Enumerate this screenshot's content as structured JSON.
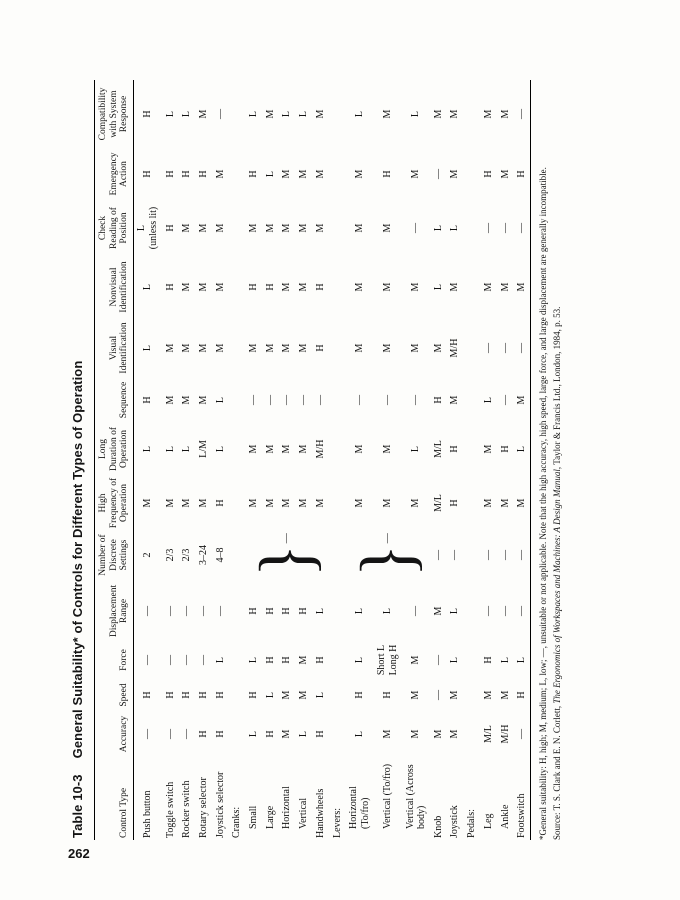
{
  "page": {
    "number": "262"
  },
  "table": {
    "title_label": "Table 10-3",
    "title": "General Suitability* of Controls for Different Types of Operation",
    "columns": [
      "Control Type",
      "Accuracy",
      "Speed",
      "Force",
      "Displacement Range",
      "Number of Discrete Settings",
      "High Frequency of Operation",
      "Long Duration of Operation",
      "Sequence",
      "Visual Identification",
      "Nonvisual Identification",
      "Check Reading of Position",
      "Emergency Action",
      "Compatibility with System Response"
    ],
    "rows": [
      {
        "label": "Push button",
        "values": [
          "—",
          "H",
          "—",
          "—",
          "2",
          "M",
          "L",
          "H",
          "L",
          "L",
          "L\n(unless lit)",
          "H",
          "H"
        ]
      },
      {
        "label": "Toggle switch",
        "values": [
          "—",
          "H",
          "—",
          "—",
          "2/3",
          "M",
          "L",
          "M",
          "M",
          "H",
          "H",
          "H",
          "L"
        ]
      },
      {
        "label": "Rocker switch",
        "values": [
          "—",
          "H",
          "—",
          "—",
          "2/3",
          "M",
          "L",
          "M",
          "M",
          "M",
          "M",
          "H",
          "L"
        ]
      },
      {
        "label": "Rotary selector",
        "values": [
          "H",
          "H",
          "—",
          "—",
          "3–24",
          "M",
          "L/M",
          "M",
          "M",
          "M",
          "M",
          "H",
          "M"
        ]
      },
      {
        "label": "Joystick selector",
        "values": [
          "H",
          "H",
          "L",
          "—",
          "4–8",
          "H",
          "L",
          "L",
          "M",
          "M",
          "M",
          "M",
          "—"
        ]
      },
      {
        "label": "Cranks:",
        "section": true
      },
      {
        "label": "Small",
        "indent": 1,
        "brace": {
          "span": 5,
          "value": "—"
        },
        "values": [
          "L",
          "H",
          "L",
          "H",
          null,
          "M",
          "M",
          "—",
          "M",
          "H",
          "M",
          "H",
          "L"
        ]
      },
      {
        "label": "Large",
        "indent": 1,
        "brace_member": true,
        "values": [
          "H",
          "L",
          "H",
          "H",
          null,
          "M",
          "M",
          "—",
          "M",
          "H",
          "M",
          "L",
          "M"
        ]
      },
      {
        "label": "Horizontal",
        "indent": 1,
        "brace_member": true,
        "values": [
          "M",
          "M",
          "H",
          "H",
          null,
          "M",
          "M",
          "—",
          "M",
          "M",
          "M",
          "M",
          "L"
        ]
      },
      {
        "label": "Vertical",
        "indent": 1,
        "brace_member": true,
        "values": [
          "L",
          "M",
          "M",
          "H",
          null,
          "M",
          "M",
          "—",
          "M",
          "M",
          "M",
          "M",
          "L"
        ]
      },
      {
        "label": "Handwheels",
        "brace_member": true,
        "values": [
          "H",
          "L",
          "H",
          "L",
          null,
          "M",
          "M/H",
          "—",
          "H",
          "H",
          "M",
          "M",
          "M"
        ]
      },
      {
        "label": "Levers:",
        "section": true
      },
      {
        "label": "Horizontal (To/fro)",
        "indent": 1,
        "brace": {
          "span": 3,
          "value": "—"
        },
        "values": [
          "L",
          "H",
          "L",
          "L",
          null,
          "M",
          "M",
          "—",
          "M",
          "M",
          "M",
          "M",
          "L"
        ]
      },
      {
        "label": "Vertical (To/fro)",
        "indent": 1,
        "brace_member": true,
        "values": [
          "M",
          "H",
          "Short L\nLong H",
          "L",
          null,
          "M",
          "M",
          "—",
          "M",
          "M",
          "M",
          "H",
          "M"
        ]
      },
      {
        "label": "Vertical (Across body)",
        "indent": 1,
        "brace_member": true,
        "values": [
          "M",
          "M",
          "M",
          "—",
          null,
          "M",
          "L",
          "—",
          "M",
          "M",
          "—",
          "M",
          "L"
        ]
      },
      {
        "label": "Knob",
        "values": [
          "M",
          "—",
          "—",
          "M",
          "—",
          "M/L",
          "M/L",
          "H",
          "M",
          "L",
          "L",
          "—",
          "M"
        ]
      },
      {
        "label": "Joystick",
        "values": [
          "M",
          "M",
          "L",
          "L",
          "—",
          "H",
          "H",
          "M",
          "M/H",
          "M",
          "L",
          "M",
          "M"
        ]
      },
      {
        "label": "Pedals:",
        "section": true
      },
      {
        "label": "Leg",
        "indent": 1,
        "values": [
          "M/L",
          "M",
          "H",
          "—",
          "—",
          "M",
          "M",
          "L",
          "—",
          "M",
          "—",
          "H",
          "M"
        ]
      },
      {
        "label": "Ankle",
        "indent": 1,
        "values": [
          "M/H",
          "M",
          "L",
          "—",
          "—",
          "M",
          "H",
          "—",
          "—",
          "M",
          "—",
          "M",
          "M"
        ]
      },
      {
        "label": "Footswitch",
        "values": [
          "—",
          "H",
          "L",
          "—",
          "—",
          "M",
          "L",
          "M",
          "—",
          "M",
          "—",
          "H",
          "—"
        ]
      }
    ]
  },
  "footnote": "*General suitability: H, high; M, medium; L, low; —, unsuitable or not applicable. Note that the high accuracy, high speed, large force, and large displacement are generally incompatible.",
  "source": {
    "prefix": "Source: T. S. Clark and E. N. Corlett, ",
    "title_italic": "The Ergonomics of Workspaces and Machines: A Design Manual",
    "suffix": ", Taylor & Francis Ltd., London, 1984, p. 53."
  }
}
